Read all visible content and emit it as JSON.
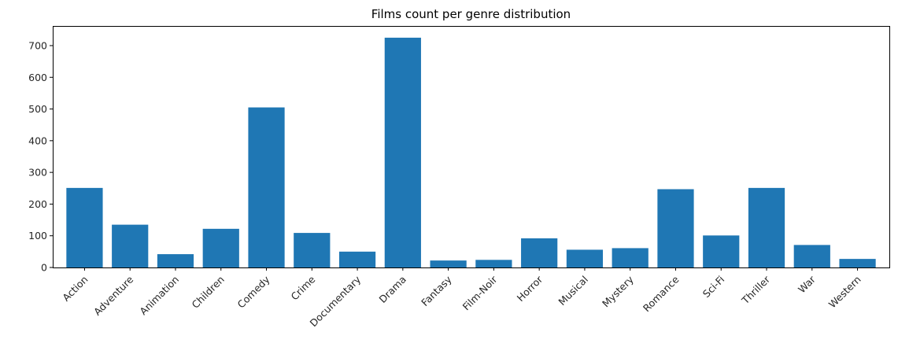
{
  "chart_data": {
    "type": "bar",
    "title": "Films count per genre distribution",
    "xlabel": "",
    "ylabel": "",
    "categories": [
      "Action",
      "Adventure",
      "Animation",
      "Children",
      "Comedy",
      "Crime",
      "Documentary",
      "Drama",
      "Fantasy",
      "Film-Noir",
      "Horror",
      "Musical",
      "Mystery",
      "Romance",
      "Sci-Fi",
      "Thriller",
      "War",
      "Western"
    ],
    "values": [
      251,
      135,
      42,
      122,
      505,
      109,
      50,
      725,
      22,
      24,
      92,
      56,
      61,
      247,
      101,
      251,
      71,
      27
    ],
    "ylim": [
      0,
      762
    ],
    "yticks": [
      0,
      100,
      200,
      300,
      400,
      500,
      600,
      700
    ],
    "ytick_labels": [
      "0",
      "100",
      "200",
      "300",
      "400",
      "500",
      "600",
      "700"
    ],
    "bar_color": "#1f77b4",
    "grid": false,
    "legend": "none"
  }
}
